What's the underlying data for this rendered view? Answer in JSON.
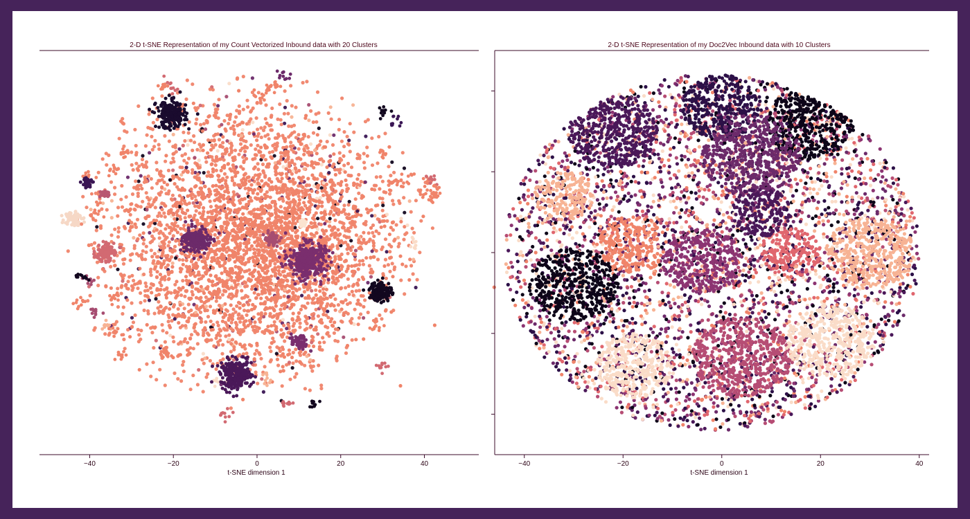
{
  "chart_data": [
    {
      "type": "scatter",
      "title": "2-D t-SNE Representation of my Count Vectorized Inbound data with 20 Clusters",
      "xlabel": "t-SNE dimension 1",
      "ylabel": "",
      "xlim": [
        -52,
        53
      ],
      "ylim": [
        -52,
        52
      ],
      "xticks": [
        -40,
        -20,
        0,
        20,
        40
      ],
      "xtick_labels": [
        "−40",
        "−20",
        "0",
        "20",
        "40"
      ],
      "yticks": [],
      "n_clusters": 20,
      "palette": "magma",
      "dominant_color": "#f0846a",
      "clusters": [
        {
          "cx": -20.5,
          "cy": 35.5,
          "r": 3.2,
          "color": "#1a0b2e"
        },
        {
          "cx": 29.5,
          "cy": -10.0,
          "r": 2.4,
          "color": "#12071f"
        },
        {
          "cx": -5.0,
          "cy": -31.5,
          "r": 3.4,
          "color": "#4a1859"
        },
        {
          "cx": -40.5,
          "cy": 18.0,
          "r": 1.3,
          "color": "#3a1654"
        },
        {
          "cx": -44.0,
          "cy": 9.0,
          "r": 1.8,
          "color": "#f6d8c6"
        },
        {
          "cx": -14.5,
          "cy": 3.0,
          "r": 3.0,
          "color": "#6c2a6a"
        },
        {
          "cx": 12.0,
          "cy": -2.0,
          "r": 4.0,
          "color": "#7a2e6e"
        },
        {
          "cx": 3.5,
          "cy": 3.5,
          "r": 1.5,
          "color": "#a64d71"
        },
        {
          "cx": 11.0,
          "cy": 7.5,
          "r": 1.0,
          "color": "#fbe3d0"
        },
        {
          "cx": 10.0,
          "cy": -23.0,
          "r": 1.6,
          "color": "#7a2e6e"
        },
        {
          "cx": -36.5,
          "cy": 0.0,
          "r": 2.0,
          "color": "#d26a72"
        },
        {
          "cx": -36.5,
          "cy": 15.0,
          "r": 1.0,
          "color": "#b85771"
        }
      ]
    },
    {
      "type": "scatter",
      "title": "2-D t-SNE Representation of my Doc2Vec Inbound data with 10 Clusters",
      "xlabel": "t-SNE dimension 1",
      "ylabel": "",
      "xlim": [
        -46,
        42
      ],
      "ylim": [
        -50,
        50
      ],
      "xticks": [
        -40,
        -20,
        0,
        20,
        40
      ],
      "xtick_labels": [
        "−40",
        "−20",
        "0",
        "20",
        "40"
      ],
      "yticks": [
        40,
        20,
        0,
        -20,
        -40
      ],
      "n_clusters": 10,
      "palette": "magma",
      "colors": [
        "#0d0518",
        "#2c1047",
        "#4a1859",
        "#6c2a6a",
        "#8c3472",
        "#b64d74",
        "#e0666e",
        "#f0846a",
        "#f7b394",
        "#fadcc8"
      ],
      "regions": [
        {
          "cx": 18,
          "cy": 32,
          "r": 9,
          "color": "#0d0518"
        },
        {
          "cx": 0,
          "cy": 36,
          "r": 8,
          "color": "#2c1047"
        },
        {
          "cx": 6,
          "cy": 24,
          "r": 10,
          "color": "#6c2a6a"
        },
        {
          "cx": -22,
          "cy": 30,
          "r": 9,
          "color": "#4a1859"
        },
        {
          "cx": -18,
          "cy": 2,
          "r": 7,
          "color": "#f0846a"
        },
        {
          "cx": -30,
          "cy": -8,
          "r": 9,
          "color": "#0d0518"
        },
        {
          "cx": -32,
          "cy": 14,
          "r": 6,
          "color": "#f7b394"
        },
        {
          "cx": 30,
          "cy": 0,
          "r": 9,
          "color": "#f7b394"
        },
        {
          "cx": 14,
          "cy": 0,
          "r": 6,
          "color": "#e0666e"
        },
        {
          "cx": -4,
          "cy": -2,
          "r": 8,
          "color": "#8c3472"
        },
        {
          "cx": 4,
          "cy": -26,
          "r": 10,
          "color": "#b64d74"
        },
        {
          "cx": 22,
          "cy": -22,
          "r": 9,
          "color": "#fadcc8"
        },
        {
          "cx": -18,
          "cy": -28,
          "r": 8,
          "color": "#fadcc8"
        },
        {
          "cx": 8,
          "cy": 10,
          "r": 6,
          "color": "#4a1859"
        }
      ]
    }
  ]
}
